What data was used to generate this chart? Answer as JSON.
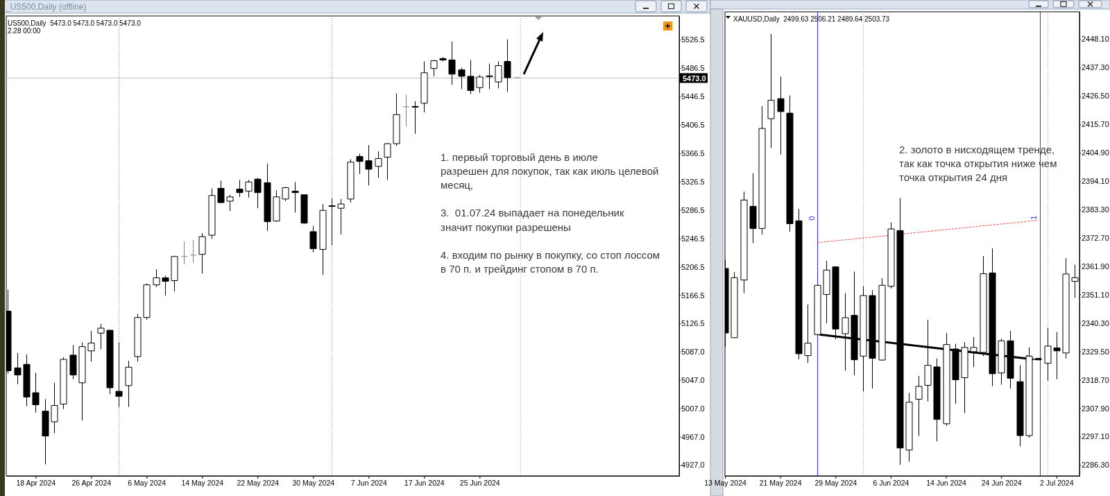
{
  "chart_data": [
    {
      "type": "candlestick",
      "title": "US500,Daily  5473.0 5473.0 5473.0 5473.0",
      "subtitle": "2.28 00:00",
      "annotations": [
        "_US500,Daily (offline)",
        "1. первый торговый день в июле\nразрешен для покупок, так как июль целевой\nмесяц,",
        "3.  01.07.24 выпадает на понедельник\nзначит покупки разрешены",
        "4. входим по рынку в покупку, со стоп лоссом\nв 70 п. и трейдинг стопом в 70 п."
      ],
      "categories": [
        null,
        null,
        null,
        "18 Apr 2024",
        null,
        null,
        null,
        null,
        null,
        "26 Apr 2024",
        null,
        null,
        null,
        null,
        null,
        "6 May 2024",
        null,
        null,
        null,
        null,
        null,
        "14 May 2024",
        null,
        null,
        null,
        null,
        null,
        "22 May 2024",
        null,
        null,
        null,
        null,
        null,
        "30 May 2024",
        null,
        null,
        null,
        null,
        null,
        "7 Jun 2024",
        null,
        null,
        null,
        null,
        null,
        "17 Jun 2024",
        null,
        null,
        null,
        null,
        null,
        "25 Jun 2024",
        null,
        null,
        null,
        null,
        null,
        null,
        null,
        null,
        null,
        null,
        null,
        null,
        null,
        null,
        null,
        null,
        null,
        null,
        null,
        null,
        null
      ],
      "ohlc": [
        [
          5144,
          5174,
          5056,
          5060
        ],
        [
          5064,
          5085,
          5041,
          5054
        ],
        [
          5069,
          5083,
          5010,
          5023
        ],
        [
          5029,
          5057,
          5001,
          5012
        ],
        [
          5003,
          5020,
          4928,
          4968
        ],
        [
          4988,
          5043,
          4972,
          5011
        ],
        [
          5013,
          5079,
          5006,
          5076
        ],
        [
          5082,
          5096,
          5048,
          5054
        ],
        [
          5043,
          5100,
          4990,
          5094
        ],
        [
          5088,
          5116,
          5073,
          5099
        ],
        [
          5113,
          5126,
          5090,
          5120
        ],
        [
          5117,
          5118,
          5027,
          5036
        ],
        [
          5031,
          5100,
          5009,
          5024
        ],
        [
          5039,
          5074,
          5009,
          5065
        ],
        [
          5080,
          5140,
          5073,
          5135
        ],
        [
          5135,
          5183,
          5132,
          5181
        ],
        [
          5181,
          5203,
          5178,
          5191
        ],
        [
          5191,
          5194,
          5166,
          5186
        ],
        [
          5187,
          5222,
          5172,
          5221
        ],
        [
          5221,
          5242,
          5210,
          5221
        ],
        [
          5223,
          5244,
          5212,
          5223
        ],
        [
          5224,
          5254,
          5197,
          5249
        ],
        [
          5251,
          5317,
          5246,
          5307
        ],
        [
          5317,
          5328,
          5296,
          5297
        ],
        [
          5299,
          5308,
          5285,
          5305
        ],
        [
          5316,
          5329,
          5305,
          5311
        ],
        [
          5313,
          5329,
          5304,
          5326
        ],
        [
          5330,
          5332,
          5289,
          5311
        ],
        [
          5325,
          5352,
          5257,
          5270
        ],
        [
          5271,
          5314,
          5270,
          5305
        ],
        [
          5302,
          5319,
          5299,
          5318
        ],
        [
          5313,
          5326,
          5283,
          5311
        ],
        [
          5308,
          5308,
          5267,
          5268
        ],
        [
          5256,
          5264,
          5227,
          5232
        ],
        [
          5231,
          5295,
          5195,
          5286
        ],
        [
          5292.5,
          5303,
          5237,
          5292
        ],
        [
          5289,
          5302,
          5252,
          5295
        ],
        [
          5302,
          5358,
          5297,
          5354
        ],
        [
          5362,
          5366,
          5337,
          5355
        ],
        [
          5356,
          5378,
          5321,
          5344
        ],
        [
          5348,
          5369,
          5332,
          5359
        ],
        [
          5361,
          5381,
          5329,
          5380
        ],
        [
          5380,
          5451,
          5377,
          5421
        ],
        [
          5432,
          5449,
          5404,
          5432
        ],
        [
          5432.5,
          5440,
          5394,
          5432
        ],
        [
          5437,
          5496,
          5424,
          5480
        ],
        [
          5486,
          5498,
          5475,
          5497
        ],
        [
          5500,
          5502,
          5496,
          5498
        ],
        [
          5498,
          5524,
          5463,
          5478
        ],
        [
          5484,
          5487,
          5457,
          5475
        ],
        [
          5475,
          5498,
          5450,
          5455
        ],
        [
          5459,
          5477,
          5452,
          5474
        ],
        [
          5475.5,
          5493,
          5457,
          5475
        ],
        [
          5467,
          5496,
          5458,
          5490
        ],
        [
          5496,
          5527,
          5453,
          5473
        ],
        [
          5473,
          5473,
          5473,
          5473
        ],
        null,
        null,
        null,
        null,
        null,
        null,
        null,
        null,
        null,
        null,
        null,
        null,
        null,
        null,
        null,
        null,
        null
      ],
      "ylim": [
        4911.8,
        5560
      ],
      "yticks": [
        5526.5,
        5486.5,
        5446.5,
        5406.5,
        5366.5,
        5326.5,
        5286.5,
        5246.5,
        5206.5,
        5166.5,
        5126.5,
        {
          "value": 5087,
          "label": "5087.0"
        },
        {
          "value": 5047,
          "label": "5047.0"
        },
        {
          "value": 5007,
          "label": "5007.0"
        },
        {
          "value": 4967,
          "label": "4967.0"
        },
        {
          "value": 4927,
          "label": "4927.0"
        }
      ],
      "ref_lines": [
        {
          "axis": "y",
          "value": 5473,
          "label": "5473.0",
          "color": "#c0c0c0",
          "line_style": "solid"
        }
      ]
    },
    {
      "type": "candlestick",
      "title": "XAUUSD,Daily  2499.63 2506.21 2489.64 2503.73",
      "annotations": [
        "2. золото в нисходящем тренде,\nтак как точка открытия ниже чем\nточка открытия 24 дня",
        "0",
        "1"
      ],
      "categories": [
        "13 May 2024",
        null,
        null,
        null,
        null,
        null,
        "21 May 2024",
        null,
        null,
        null,
        null,
        null,
        "29 May 2024",
        null,
        null,
        null,
        null,
        null,
        "6 Jun 2024",
        null,
        null,
        null,
        null,
        null,
        "14 Jun 2024",
        null,
        null,
        null,
        null,
        null,
        "24 Jun 2024",
        null,
        null,
        null,
        null,
        null,
        "2 Jul 2024",
        null,
        null
      ],
      "ohlc": [
        [
          2361.0,
          2364.3,
          2331.2,
          2336.5
        ],
        [
          2334.7,
          2359.6,
          2334.6,
          2357.5
        ],
        [
          2356.6,
          2390.2,
          2351.6,
          2387.0
        ],
        [
          2384.6,
          2397.2,
          2370.6,
          2376.2
        ],
        [
          2376.2,
          2422.7,
          2373.9,
          2414.2
        ],
        [
          2417.9,
          2450.1,
          2406.8,
          2424.9
        ],
        [
          2425.5,
          2433.9,
          2404.3,
          2420.6
        ],
        [
          2420.0,
          2426.7,
          2375.0,
          2378.0
        ],
        [
          2379.1,
          2383.6,
          2326.5,
          2328.6
        ],
        [
          2327.9,
          2347.3,
          2325.1,
          2332.6
        ],
        [
          2335.9,
          2355.0,
          2335.5,
          2354.6
        ],
        [
          2351.1,
          2363.9,
          2340.2,
          2360.4
        ],
        [
          2361.6,
          2361.8,
          2334.1,
          2338.0
        ],
        [
          2336.2,
          2351.6,
          2322.2,
          2342.3
        ],
        [
          2343.2,
          2359.8,
          2320.4,
          2326.3
        ],
        [
          2327.7,
          2354.3,
          2314.2,
          2350.7
        ],
        [
          2350.7,
          2352.8,
          2315.4,
          2326.9
        ],
        [
          2326.2,
          2357.3,
          2326.0,
          2354.6
        ],
        [
          2354.2,
          2378.5,
          2353.4,
          2376.0
        ],
        [
          2375.4,
          2387.7,
          2286.4,
          2292.8
        ],
        [
          2292.0,
          2313.7,
          2287.6,
          2310.2
        ],
        [
          2311.3,
          2320.1,
          2297.3,
          2316.2
        ],
        [
          2316.6,
          2341.5,
          2310.5,
          2324.2
        ],
        [
          2323.6,
          2326.8,
          2295.3,
          2303.7
        ],
        [
          2302.0,
          2336.5,
          2301.2,
          2332.1
        ],
        [
          2330.4,
          2332.4,
          2309.6,
          2318.7
        ],
        [
          2319.5,
          2333.0,
          2306.1,
          2331.0
        ],
        [
          2329.4,
          2334.9,
          2323.6,
          2331.0
        ],
        [
          2329.1,
          2365.7,
          2327.7,
          2359.0
        ],
        [
          2359.3,
          2368.6,
          2316.3,
          2321.0
        ],
        [
          2321.3,
          2334.3,
          2316.8,
          2333.5
        ],
        [
          2333.5,
          2337.3,
          2315.4,
          2319.3
        ],
        [
          2318.0,
          2324.2,
          2293.4,
          2297.5
        ],
        [
          2297.5,
          2331.0,
          2296.7,
          2327.7
        ],
        [
          2326.8,
          2327.0,
          2326.0,
          2326.3
        ],
        [
          2325.0,
          2338.5,
          2318.3,
          2331.5
        ],
        [
          2330.8,
          2336.8,
          2318.9,
          2329.7
        ],
        [
          2328.9,
          2364.9,
          2326.8,
          2358.9
        ],
        [
          2356.1,
          2362.4,
          2349.9,
          2357.5
        ]
      ],
      "ylim": [
        2282.2,
        2458.5
      ],
      "yticks": [
        {
          "value": 2448.1,
          "label": "2448.10"
        },
        {
          "value": 2437.3,
          "label": "2437.30"
        },
        {
          "value": 2426.5,
          "label": "2426.50"
        },
        {
          "value": 2415.7,
          "label": "2415.70"
        },
        {
          "value": 2404.9,
          "label": "2404.90"
        },
        {
          "value": 2394.1,
          "label": "2394.10"
        },
        {
          "value": 2383.3,
          "label": "2383.30"
        },
        {
          "value": 2372.7,
          "label": "2372.70"
        },
        {
          "value": 2361.9,
          "label": "2361.90"
        },
        {
          "value": 2351.1,
          "label": "2351.10"
        },
        {
          "value": 2340.3,
          "label": "2340.30"
        },
        {
          "value": 2329.5,
          "label": "2329.50"
        },
        {
          "value": 2318.7,
          "label": "2318.70"
        },
        {
          "value": 2307.9,
          "label": "2307.90"
        },
        {
          "value": 2297.1,
          "label": "2297.10"
        },
        {
          "value": 2286.3,
          "label": "2286.30"
        }
      ],
      "series": [
        {
          "type": "line",
          "values": [
            null,
            null,
            null,
            null,
            null,
            null,
            null,
            null,
            null,
            null,
            2370.8,
            null,
            null,
            null,
            null,
            null,
            null,
            null,
            null,
            null,
            null,
            null,
            null,
            null,
            null,
            null,
            null,
            null,
            null,
            null,
            null,
            null,
            null,
            null,
            2379.3,
            null,
            null,
            null,
            null
          ],
          "color": "#ff4444",
          "line_style": "dashed"
        }
      ]
    }
  ]
}
